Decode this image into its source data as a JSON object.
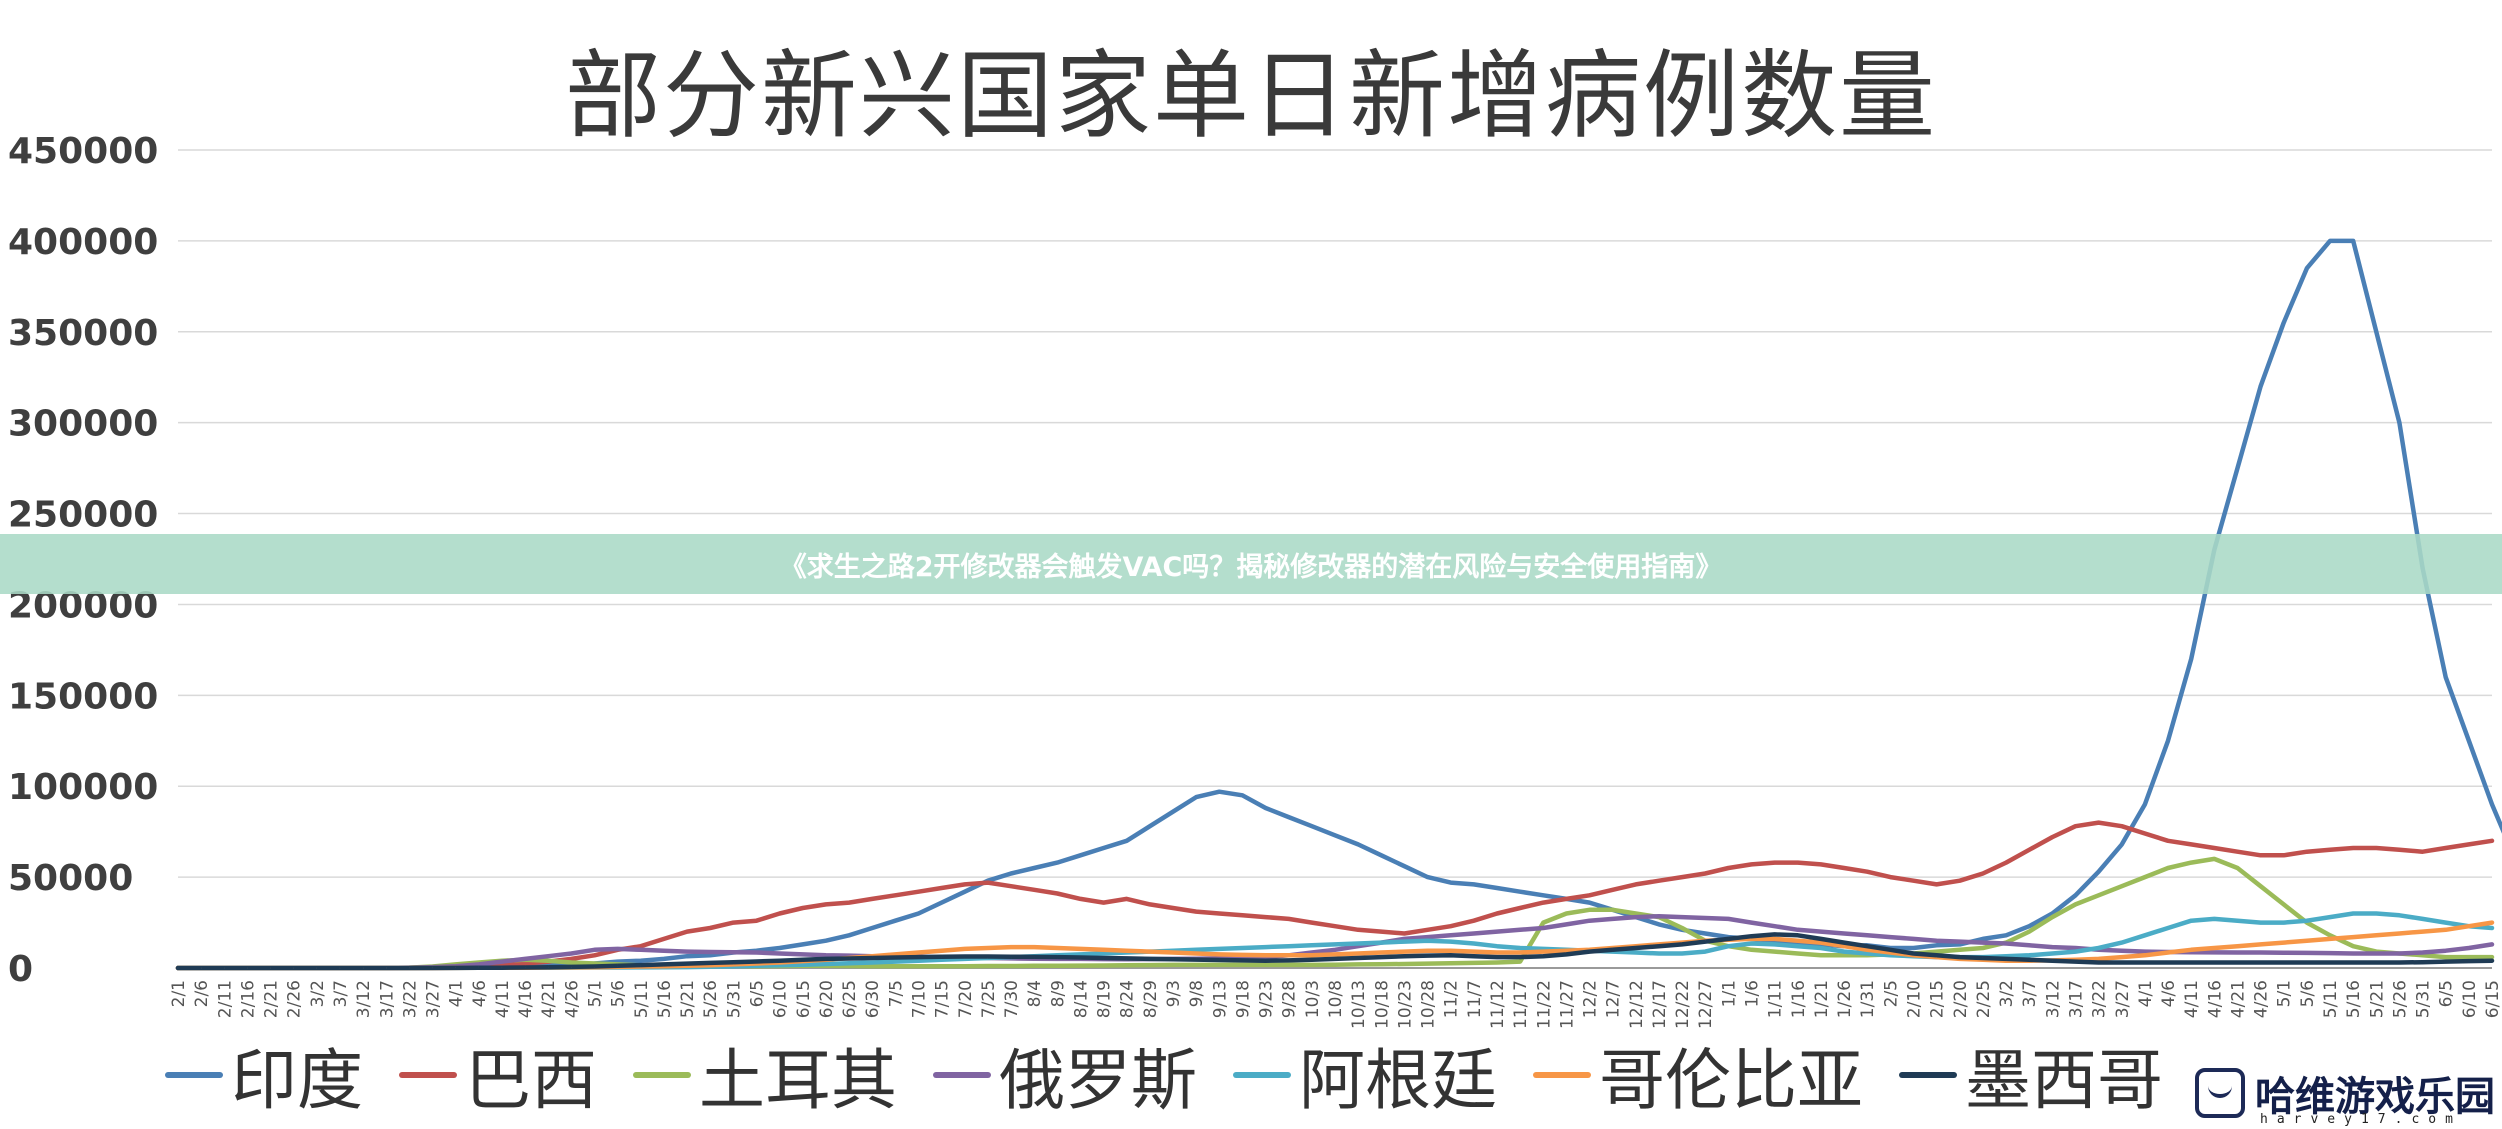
{
  "banner": {
    "text": "《求生之路2开修改器会触发VAC吗？揭秘修改器的潜在风险与安全使用指南》"
  },
  "watermark": {
    "logo_icon": "gamepad-icon",
    "text": "哈维游戏乐园",
    "subtext": "harvey17.com"
  },
  "chart_data": {
    "type": "line",
    "title": "部分新兴国家单日新增病例数量",
    "xlabel": "",
    "ylabel": "",
    "ylim": [
      0,
      450000
    ],
    "yticks": [
      0,
      50000,
      100000,
      150000,
      200000,
      250000,
      300000,
      350000,
      400000,
      450000
    ],
    "ytick_labels": [
      "0",
      "50000",
      "100000",
      "150000",
      "200000",
      "250000",
      "300000",
      "350000",
      "400000",
      "450000"
    ],
    "grid": true,
    "legend_position": "bottom",
    "x_tick_labels": [
      "2/1",
      "2/6",
      "2/11",
      "2/16",
      "2/21",
      "2/26",
      "3/2",
      "3/7",
      "3/12",
      "3/17",
      "3/22",
      "3/27",
      "4/1",
      "4/6",
      "4/11",
      "4/16",
      "4/21",
      "4/26",
      "5/1",
      "5/6",
      "5/11",
      "5/16",
      "5/21",
      "5/26",
      "5/31",
      "6/5",
      "6/10",
      "6/15",
      "6/20",
      "6/25",
      "6/30",
      "7/5",
      "7/10",
      "7/15",
      "7/20",
      "7/25",
      "7/30",
      "8/4",
      "8/9",
      "8/14",
      "8/19",
      "8/24",
      "8/29",
      "9/3",
      "9/8",
      "9/13",
      "9/18",
      "9/23",
      "9/28",
      "10/3",
      "10/8",
      "10/13",
      "10/18",
      "10/23",
      "10/28",
      "11/2",
      "11/7",
      "11/12",
      "11/17",
      "11/22",
      "11/27",
      "12/2",
      "12/7",
      "12/12",
      "12/17",
      "12/22",
      "12/27",
      "1/1",
      "1/6",
      "1/11",
      "1/16",
      "1/21",
      "1/26",
      "1/31",
      "2/5",
      "2/10",
      "2/15",
      "2/20",
      "2/25",
      "3/2",
      "3/7",
      "3/12",
      "3/17",
      "3/22",
      "3/27",
      "4/1",
      "4/6",
      "4/11",
      "4/16",
      "4/21",
      "4/26",
      "5/1",
      "5/6",
      "5/11",
      "5/16",
      "5/21",
      "5/26",
      "5/31",
      "6/5",
      "6/10",
      "6/15"
    ],
    "x_unit_note": "one tick every 5 days",
    "series": [
      {
        "name": "印度",
        "color": "#4a7fb5",
        "values": [
          0,
          0,
          0,
          0,
          0,
          0,
          0,
          0,
          0,
          10,
          50,
          120,
          300,
          700,
          1000,
          1300,
          1500,
          1800,
          2500,
          3500,
          4000,
          5000,
          6500,
          7000,
          8500,
          9500,
          11000,
          13000,
          15000,
          18000,
          22000,
          26000,
          30000,
          36000,
          42000,
          48000,
          52000,
          55000,
          58000,
          62000,
          66000,
          70000,
          78000,
          86000,
          94000,
          97000,
          95000,
          88000,
          83000,
          78000,
          73000,
          68000,
          62000,
          56000,
          50000,
          47000,
          46000,
          44000,
          42000,
          40000,
          38000,
          36000,
          32000,
          28000,
          24000,
          21000,
          19000,
          17000,
          16000,
          15000,
          14000,
          13000,
          12000,
          12500,
          11000,
          11000,
          12500,
          13000,
          16000,
          18000,
          23000,
          30000,
          40000,
          53000,
          68000,
          90000,
          125000,
          170000,
          230000,
          275000,
          320000,
          355000,
          385000,
          400000,
          400000,
          350000,
          300000,
          220000,
          160000,
          125000,
          90000,
          60000
        ]
      },
      {
        "name": "巴西",
        "color": "#c0504d",
        "values": [
          0,
          0,
          0,
          0,
          0,
          0,
          0,
          0,
          0,
          20,
          50,
          150,
          500,
          800,
          1500,
          2500,
          3500,
          5000,
          7000,
          10000,
          12000,
          16000,
          20000,
          22000,
          25000,
          26000,
          30000,
          33000,
          35000,
          36000,
          38000,
          40000,
          42000,
          44000,
          46000,
          47000,
          45000,
          43000,
          41000,
          38000,
          36000,
          38000,
          35000,
          33000,
          31000,
          30000,
          29000,
          28000,
          27000,
          25000,
          23000,
          21000,
          20000,
          19000,
          21000,
          23000,
          26000,
          30000,
          33000,
          36000,
          38000,
          40000,
          43000,
          46000,
          48000,
          50000,
          52000,
          55000,
          57000,
          58000,
          58000,
          57000,
          55000,
          53000,
          50000,
          48000,
          46000,
          48000,
          52000,
          58000,
          65000,
          72000,
          78000,
          80000,
          78000,
          74000,
          70000,
          68000,
          66000,
          64000,
          62000,
          62000,
          64000,
          65000,
          66000,
          66000,
          65000,
          64000,
          66000,
          68000,
          70000
        ]
      },
      {
        "name": "土耳其",
        "color": "#9bbb59",
        "values": [
          0,
          0,
          0,
          0,
          0,
          0,
          0,
          0,
          0,
          50,
          200,
          800,
          2000,
          3000,
          4000,
          4500,
          4000,
          3000,
          2500,
          2000,
          1500,
          1200,
          1000,
          1000,
          1000,
          1000,
          1100,
          1200,
          1200,
          1100,
          1000,
          1000,
          1000,
          1000,
          1000,
          1100,
          1100,
          1200,
          1200,
          1300,
          1400,
          1500,
          1600,
          1700,
          1700,
          1700,
          1700,
          1700,
          1700,
          1700,
          1800,
          2000,
          2100,
          2200,
          2400,
          2600,
          2800,
          3000,
          3500,
          25000,
          30000,
          32000,
          32000,
          30000,
          28000,
          22000,
          15000,
          12000,
          10000,
          9000,
          8000,
          7000,
          7000,
          7000,
          7500,
          8000,
          9000,
          10000,
          11000,
          14000,
          20000,
          28000,
          35000,
          40000,
          45000,
          50000,
          55000,
          58000,
          60000,
          55000,
          45000,
          35000,
          25000,
          18000,
          12000,
          9000,
          8000,
          7000,
          6000,
          6000,
          6000
        ]
      },
      {
        "name": "俄罗斯",
        "color": "#8064a2",
        "values": [
          0,
          0,
          0,
          0,
          0,
          0,
          0,
          0,
          0,
          50,
          200,
          500,
          1000,
          2000,
          3500,
          5000,
          6500,
          8000,
          10000,
          10500,
          10000,
          9500,
          9000,
          8800,
          8700,
          8500,
          8000,
          7500,
          7000,
          6800,
          6500,
          6300,
          6200,
          6000,
          5800,
          5500,
          5300,
          5100,
          5000,
          5000,
          4900,
          4800,
          4900,
          5000,
          5100,
          5300,
          5500,
          6000,
          7000,
          8500,
          10000,
          12000,
          14000,
          16000,
          17000,
          18000,
          19000,
          20000,
          21000,
          22000,
          24000,
          26000,
          27000,
          28000,
          28500,
          28000,
          27500,
          27000,
          25000,
          23000,
          21000,
          20000,
          19000,
          18000,
          17000,
          16000,
          15000,
          14500,
          14000,
          13500,
          12500,
          11500,
          11000,
          10000,
          9500,
          9000,
          8800,
          8700,
          8600,
          8500,
          8500,
          8400,
          8300,
          8200,
          8000,
          8000,
          8000,
          8500,
          9500,
          11000,
          13000
        ]
      },
      {
        "name": "阿根廷",
        "color": "#4bacc6",
        "values": [
          0,
          0,
          0,
          0,
          0,
          0,
          0,
          0,
          0,
          0,
          10,
          30,
          80,
          100,
          120,
          150,
          180,
          220,
          250,
          300,
          350,
          400,
          500,
          700,
          900,
          1200,
          1500,
          1800,
          2200,
          2600,
          3000,
          3500,
          4000,
          4500,
          5000,
          5500,
          6000,
          6500,
          7000,
          7500,
          8000,
          8500,
          9000,
          9500,
          10000,
          10500,
          11000,
          11500,
          12000,
          12500,
          13000,
          13500,
          14000,
          14500,
          15000,
          14500,
          13500,
          12000,
          11000,
          10500,
          10000,
          9500,
          9000,
          8500,
          8000,
          8000,
          9000,
          12000,
          13500,
          13000,
          12000,
          11000,
          9000,
          8000,
          7000,
          6500,
          6000,
          6000,
          6000,
          6500,
          7000,
          8000,
          9000,
          11000,
          14000,
          18000,
          22000,
          26000,
          27000,
          26000,
          25000,
          25000,
          26000,
          28000,
          30000,
          30000,
          29000,
          27000,
          25000,
          23000,
          22000
        ]
      },
      {
        "name": "哥伦比亚",
        "color": "#f79646",
        "values": [
          0,
          0,
          0,
          0,
          0,
          0,
          0,
          0,
          0,
          0,
          5,
          20,
          60,
          90,
          120,
          180,
          250,
          350,
          450,
          600,
          800,
          1000,
          1200,
          1500,
          2000,
          2500,
          3000,
          3800,
          4500,
          5500,
          6500,
          7500,
          8500,
          9500,
          10500,
          11000,
          11500,
          11500,
          11000,
          10500,
          10000,
          9500,
          9000,
          8500,
          8000,
          7500,
          7200,
          7000,
          7000,
          7000,
          7500,
          8000,
          8500,
          9000,
          9500,
          9500,
          9000,
          8500,
          8500,
          9000,
          9500,
          10000,
          11000,
          12000,
          13000,
          14000,
          15000,
          15500,
          16000,
          16000,
          15000,
          14000,
          12000,
          10000,
          8500,
          7000,
          6000,
          5000,
          4500,
          4000,
          4000,
          4200,
          4500,
          5000,
          6000,
          7000,
          8500,
          10000,
          11000,
          12000,
          13000,
          14000,
          15000,
          16000,
          17000,
          18000,
          19000,
          20000,
          21000,
          23000,
          25000
        ]
      },
      {
        "name": "墨西哥",
        "color": "#1f3b55",
        "values": [
          0,
          0,
          0,
          0,
          0,
          0,
          0,
          0,
          0,
          0,
          5,
          20,
          60,
          100,
          150,
          250,
          400,
          600,
          800,
          1200,
          1600,
          2000,
          2400,
          2800,
          3200,
          3600,
          4000,
          4500,
          5000,
          5200,
          5500,
          5800,
          6000,
          6200,
          6300,
          6300,
          6200,
          6100,
          6000,
          5800,
          5500,
          5300,
          5000,
          4800,
          4600,
          4400,
          4200,
          4000,
          4200,
          4500,
          5000,
          5500,
          6000,
          6500,
          6800,
          7000,
          6500,
          6000,
          6000,
          6500,
          7500,
          9000,
          10000,
          11000,
          12000,
          13000,
          14500,
          16000,
          17500,
          18500,
          18000,
          16000,
          14000,
          12000,
          10000,
          8000,
          7000,
          6000,
          5500,
          5000,
          4500,
          4000,
          3500,
          3000,
          3000,
          3000,
          3000,
          3000,
          3000,
          3000,
          3000,
          3000,
          3000,
          3000,
          3000,
          3000,
          3000,
          3200,
          3500,
          3800,
          4000
        ]
      }
    ]
  }
}
